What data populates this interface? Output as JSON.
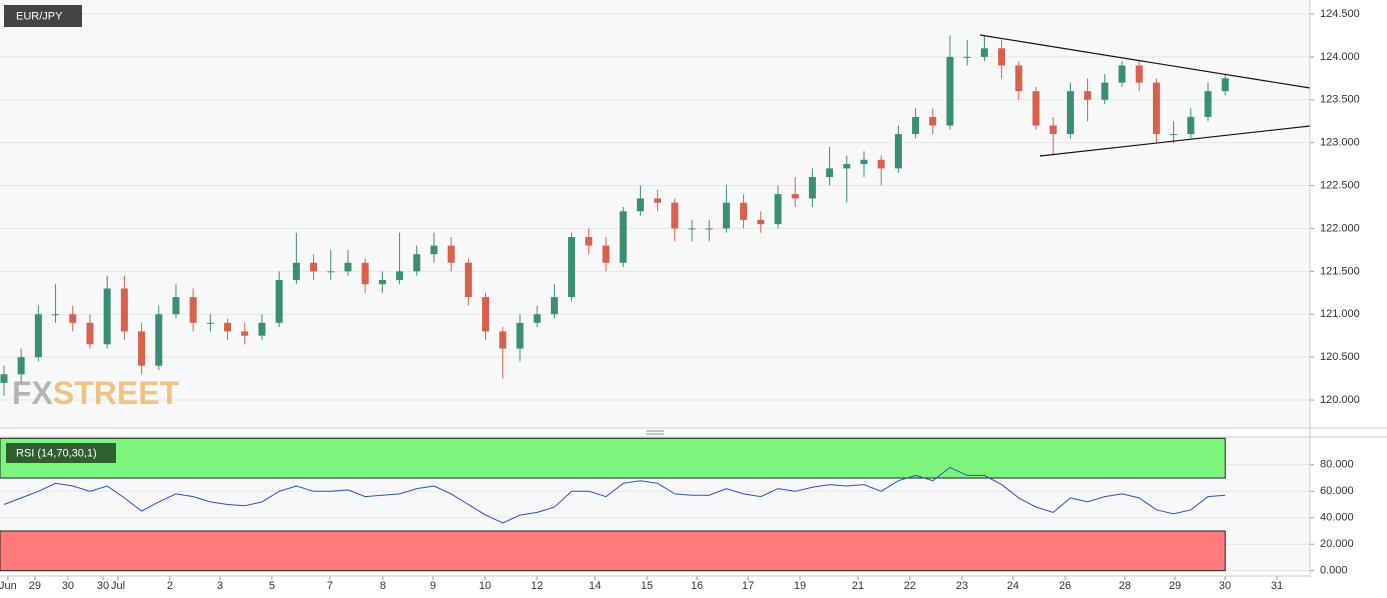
{
  "chart_data": [
    {
      "type": "candlestick",
      "title": "EUR/JPY",
      "up_color": "#3a8f73",
      "down_color": "#d9604a",
      "open": [
        120.2,
        120.3,
        120.5,
        121.0,
        121.0,
        120.9,
        120.65,
        121.3,
        120.8,
        120.4,
        121.0,
        121.2,
        120.9,
        120.9,
        120.8,
        120.75,
        120.9,
        121.4,
        121.6,
        121.5,
        121.5,
        121.6,
        121.35,
        121.4,
        121.5,
        121.7,
        121.8,
        121.6,
        121.2,
        120.8,
        120.6,
        120.9,
        121.0,
        121.2,
        121.9,
        121.8,
        121.6,
        122.2,
        122.35,
        122.3,
        122.0,
        122.0,
        122.0,
        122.3,
        122.1,
        122.05,
        122.4,
        122.35,
        122.6,
        122.7,
        122.75,
        122.8,
        122.7,
        123.1,
        123.3,
        123.2,
        124.0,
        124.0,
        124.1,
        123.9,
        123.6,
        123.2,
        123.1,
        123.6,
        123.5,
        123.7,
        123.9,
        123.7,
        123.1,
        123.1,
        123.3,
        123.6
      ],
      "high": [
        120.4,
        120.6,
        121.1,
        121.35,
        121.1,
        121.0,
        121.45,
        121.45,
        120.9,
        121.1,
        121.35,
        121.3,
        121.0,
        120.95,
        120.9,
        121.0,
        121.5,
        121.95,
        121.7,
        121.75,
        121.75,
        121.65,
        121.5,
        121.95,
        121.8,
        121.95,
        121.9,
        121.65,
        121.25,
        120.85,
        121.0,
        121.1,
        121.35,
        121.95,
        122.0,
        121.9,
        122.25,
        122.5,
        122.45,
        122.35,
        122.1,
        122.1,
        122.5,
        122.4,
        122.2,
        122.5,
        122.6,
        122.7,
        122.95,
        122.85,
        122.9,
        122.85,
        123.2,
        123.4,
        123.4,
        124.25,
        124.2,
        124.25,
        124.2,
        123.95,
        123.65,
        123.3,
        123.7,
        123.75,
        123.8,
        123.95,
        123.95,
        123.75,
        123.25,
        123.4,
        123.7,
        123.8
      ],
      "low": [
        120.05,
        120.2,
        120.45,
        120.9,
        120.8,
        120.6,
        120.6,
        120.7,
        120.3,
        120.35,
        120.95,
        120.8,
        120.8,
        120.7,
        120.65,
        120.7,
        120.85,
        121.35,
        121.4,
        121.4,
        121.45,
        121.25,
        121.25,
        121.35,
        121.45,
        121.6,
        121.5,
        121.1,
        120.7,
        120.25,
        120.45,
        120.85,
        120.95,
        121.15,
        121.7,
        121.5,
        121.55,
        122.15,
        122.2,
        121.85,
        121.85,
        121.85,
        121.95,
        122.0,
        121.95,
        122.0,
        122.25,
        122.25,
        122.5,
        122.3,
        122.6,
        122.5,
        122.65,
        123.05,
        123.1,
        123.15,
        123.9,
        123.95,
        123.75,
        123.5,
        123.15,
        122.85,
        123.05,
        123.25,
        123.45,
        123.65,
        123.6,
        123.0,
        123.0,
        123.05,
        123.25,
        123.55
      ],
      "close": [
        120.3,
        120.5,
        121.0,
        121.0,
        120.9,
        120.65,
        121.3,
        120.8,
        120.4,
        121.0,
        121.2,
        120.9,
        120.9,
        120.8,
        120.75,
        120.9,
        121.4,
        121.6,
        121.5,
        121.5,
        121.6,
        121.35,
        121.4,
        121.5,
        121.7,
        121.8,
        121.6,
        121.2,
        120.8,
        120.6,
        120.9,
        121.0,
        121.2,
        121.9,
        121.8,
        121.6,
        122.2,
        122.35,
        122.3,
        122.0,
        122.0,
        122.0,
        122.3,
        122.1,
        122.05,
        122.4,
        122.35,
        122.6,
        122.7,
        122.75,
        122.8,
        122.7,
        123.1,
        123.3,
        123.2,
        124.0,
        124.0,
        124.1,
        123.9,
        123.6,
        123.2,
        123.1,
        123.6,
        123.5,
        123.7,
        123.9,
        123.7,
        123.1,
        123.1,
        123.3,
        123.6,
        123.75
      ],
      "xlim": [
        -0.23,
        75.93
      ],
      "ylim": [
        119.674,
        124.663
      ],
      "yticks": [
        {
          "value": 120,
          "label": "120.000"
        },
        {
          "value": 120.5,
          "label": "120.500"
        },
        {
          "value": 121,
          "label": "121.000"
        },
        {
          "value": 121.5,
          "label": "121.500"
        },
        {
          "value": 122,
          "label": "122.000"
        },
        {
          "value": 122.5,
          "label": "122.500"
        },
        {
          "value": 123,
          "label": "123.000"
        },
        {
          "value": 123.5,
          "label": "123.500"
        },
        {
          "value": 124,
          "label": "124.000"
        },
        {
          "value": 124.5,
          "label": "124.500"
        }
      ],
      "xticks": [
        {
          "value": 0.23,
          "label": "Jun"
        },
        {
          "value": 1.8,
          "label": "29"
        },
        {
          "value": 3.72,
          "label": "30"
        },
        {
          "value": 5.76,
          "label": "30"
        },
        {
          "value": 6.63,
          "label": "Jul"
        },
        {
          "value": 9.65,
          "label": "2"
        },
        {
          "value": 12.56,
          "label": "3"
        },
        {
          "value": 15.58,
          "label": "5"
        },
        {
          "value": 18.95,
          "label": "7"
        },
        {
          "value": 22.03,
          "label": "8"
        },
        {
          "value": 24.94,
          "label": "9"
        },
        {
          "value": 27.97,
          "label": "10"
        },
        {
          "value": 30.99,
          "label": "12"
        },
        {
          "value": 34.36,
          "label": "14"
        },
        {
          "value": 37.38,
          "label": "15"
        },
        {
          "value": 40.29,
          "label": "16"
        },
        {
          "value": 43.26,
          "label": "17"
        },
        {
          "value": 46.28,
          "label": "19"
        },
        {
          "value": 49.65,
          "label": "21"
        },
        {
          "value": 52.67,
          "label": "22"
        },
        {
          "value": 55.7,
          "label": "23"
        },
        {
          "value": 58.66,
          "label": "24"
        },
        {
          "value": 61.69,
          "label": "26"
        },
        {
          "value": 65.17,
          "label": "28"
        },
        {
          "value": 68.08,
          "label": "29"
        },
        {
          "value": 70.99,
          "label": "30"
        },
        {
          "value": 74.01,
          "label": "31"
        }
      ],
      "grid": true,
      "watermark": {
        "fx": "FX",
        "street": "STREET"
      }
    },
    {
      "type": "line",
      "title": "RSI (14,70,30,1)",
      "color": "#2a4fc4",
      "values": [
        50,
        55,
        60,
        66,
        64,
        60,
        64,
        55,
        45,
        52,
        58,
        56,
        52,
        50,
        49,
        52,
        60,
        64,
        60,
        60,
        61,
        56,
        57,
        58,
        62,
        64,
        58,
        50,
        42,
        36,
        42,
        44,
        48,
        60,
        60,
        56,
        66,
        68,
        66,
        58,
        57,
        57,
        62,
        58,
        56,
        62,
        60,
        63,
        65,
        64,
        65,
        60,
        68,
        72,
        68,
        78,
        72,
        72,
        65,
        55,
        48,
        44,
        55,
        52,
        56,
        58,
        55,
        46,
        43,
        46,
        56,
        57
      ],
      "bands": [
        {
          "from": 70,
          "to": 100,
          "color": "#7cf57c"
        },
        {
          "from": 0,
          "to": 30,
          "color": "#ff7b7b"
        }
      ],
      "xlim": [
        -0.23,
        75.93
      ],
      "ylim": [
        -1,
        101
      ],
      "yticks": [
        {
          "value": 0,
          "label": "0.000"
        },
        {
          "value": 20,
          "label": "20.000"
        },
        {
          "value": 40,
          "label": "40.000"
        },
        {
          "value": 60,
          "label": "60.000"
        },
        {
          "value": 80,
          "label": "80.000"
        }
      ],
      "grid": true
    }
  ]
}
